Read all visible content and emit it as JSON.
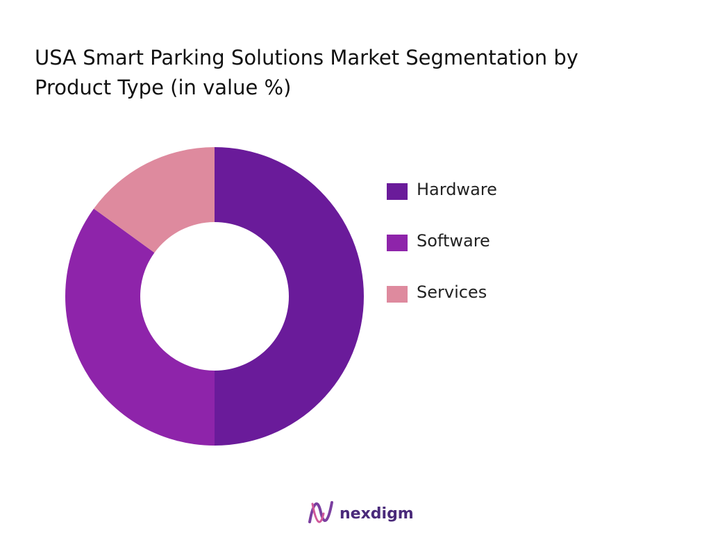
{
  "chart_data": {
    "type": "pie",
    "title": "USA Smart Parking Solutions Market Segmentation by Product Type (in value %)",
    "categories": [
      "Hardware",
      "Software",
      "Services"
    ],
    "values": [
      50,
      35,
      15
    ],
    "colors": [
      "#6a1b9a",
      "#8e24aa",
      "#de8a9e"
    ],
    "legend": "right"
  },
  "footer": {
    "brand": "nexdigm"
  }
}
